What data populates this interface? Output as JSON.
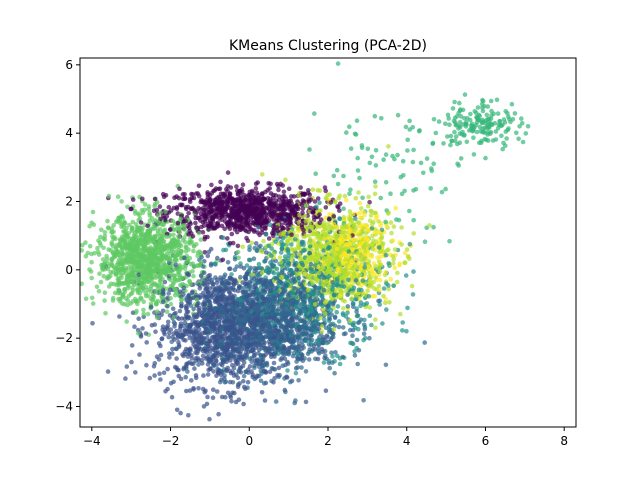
{
  "chart_data": {
    "type": "scatter",
    "title": "KMeans Clustering (PCA-2D)",
    "xlabel": "",
    "ylabel": "",
    "xlim": [
      -4.3,
      8.3
    ],
    "ylim": [
      -4.6,
      6.2
    ],
    "x_ticks": [
      -4,
      -2,
      0,
      2,
      4,
      6,
      8
    ],
    "y_ticks": [
      -4,
      -2,
      0,
      2,
      4,
      6
    ],
    "x_tick_labels": [
      "−4",
      "−2",
      "0",
      "2",
      "4",
      "6",
      "8"
    ],
    "y_tick_labels": [
      "−4",
      "−2",
      "0",
      "2",
      "4",
      "6"
    ],
    "grid": false,
    "legend": "none",
    "marker_alpha": 0.7,
    "series": [
      {
        "color": "#440154",
        "center": [
          -0.1,
          1.7
        ],
        "spread": [
          1.0,
          0.35
        ],
        "count": 900
      },
      {
        "color": "#3b528b",
        "center": [
          -0.6,
          -1.7
        ],
        "spread": [
          0.9,
          0.85
        ],
        "count": 1300
      },
      {
        "color": "#31688e",
        "center": [
          0.6,
          -1.4
        ],
        "spread": [
          0.9,
          0.8
        ],
        "count": 1100
      },
      {
        "color": "#21918c",
        "center": [
          1.6,
          -0.5
        ],
        "spread": [
          1.0,
          0.9
        ],
        "count": 500
      },
      {
        "color": "#35b779",
        "center": [
          5.9,
          4.3
        ],
        "spread": [
          0.5,
          0.35
        ],
        "count": 160
      },
      {
        "color": "#35b779",
        "center": [
          3.5,
          3.0
        ],
        "spread": [
          1.0,
          1.0
        ],
        "count": 90
      },
      {
        "color": "#5ec962",
        "center": [
          -2.6,
          0.3
        ],
        "spread": [
          0.65,
          0.65
        ],
        "count": 1100
      },
      {
        "color": "#b5de2b",
        "center": [
          2.1,
          0.4
        ],
        "spread": [
          0.75,
          0.75
        ],
        "count": 800
      },
      {
        "color": "#fde725",
        "center": [
          2.6,
          0.5
        ],
        "spread": [
          0.55,
          0.6
        ],
        "count": 260
      }
    ]
  }
}
